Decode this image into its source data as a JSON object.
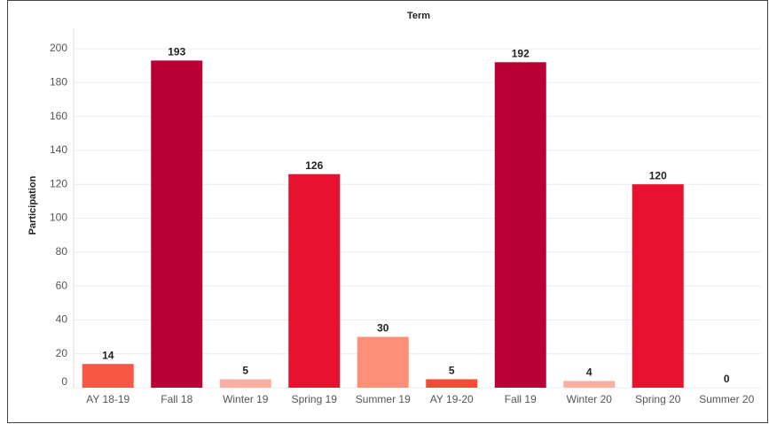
{
  "chart_data": {
    "type": "bar",
    "title": "Term",
    "y_label": "Participation",
    "categories": [
      "AY 18-19",
      "Fall 18",
      "Winter 19",
      "Spring 19",
      "Summer 19",
      "AY 19-20",
      "Fall 19",
      "Winter 20",
      "Spring 20",
      "Summer 20"
    ],
    "values": [
      14,
      193,
      5,
      126,
      30,
      5,
      192,
      4,
      120,
      0
    ],
    "colors": [
      "#f95646",
      "#b90035",
      "#f8b0a2",
      "#e8112f",
      "#fb8f78",
      "#f24b39",
      "#b90035",
      "#f8b0a2",
      "#e8112f",
      "#e8112f"
    ],
    "ylim": [
      0,
      212
    ],
    "yticks": [
      0,
      20,
      40,
      60,
      80,
      100,
      120,
      140,
      160,
      180,
      200
    ],
    "grid": true
  }
}
